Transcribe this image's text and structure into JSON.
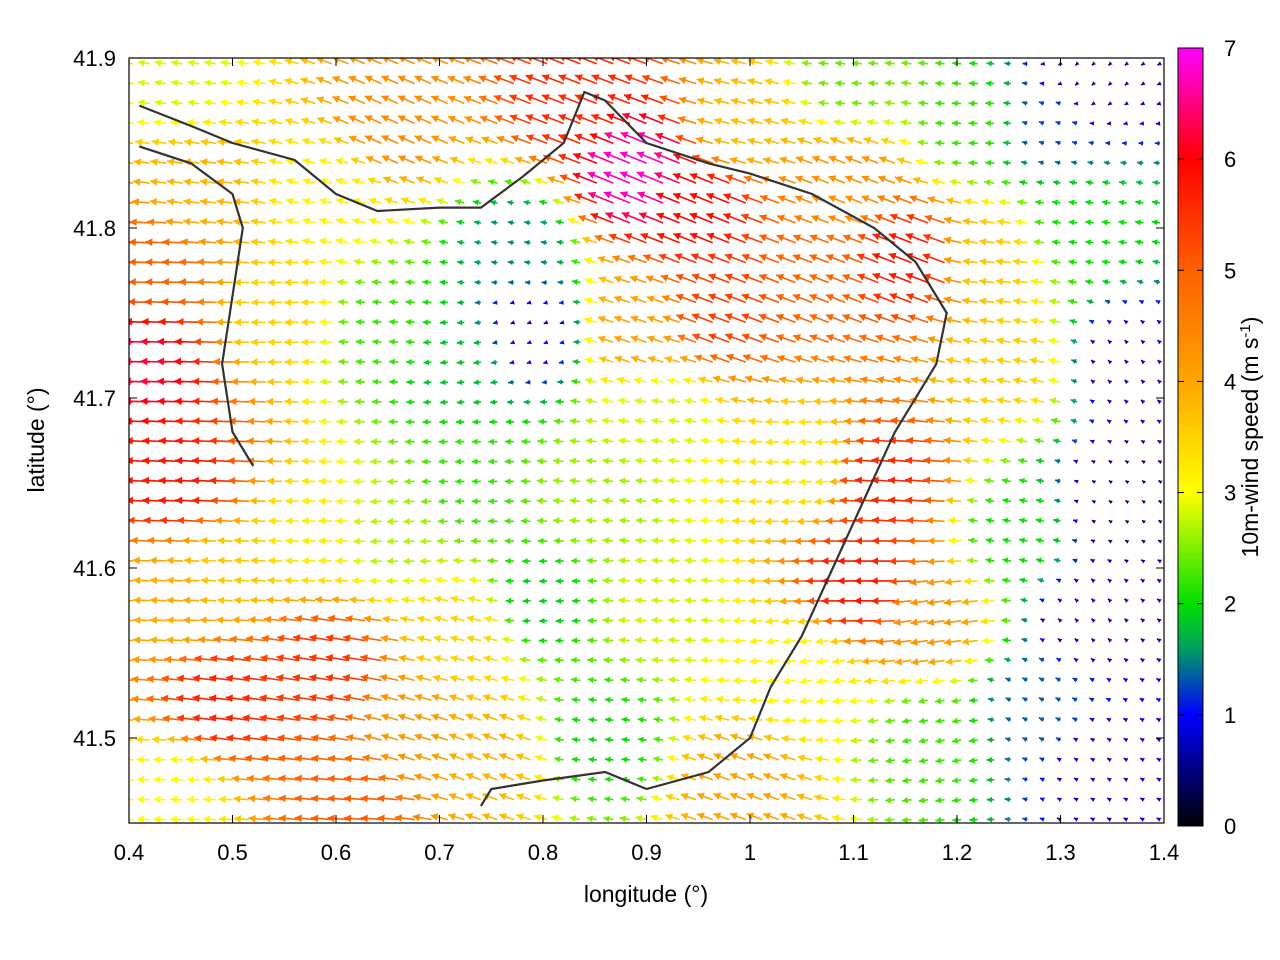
{
  "chart_data": {
    "type": "vector-field",
    "title": "",
    "xlabel": "longitude (°)",
    "ylabel": "latitude (°)",
    "xlim": [
      0.4,
      1.4
    ],
    "ylim": [
      41.45,
      41.9
    ],
    "xticks": [
      "0.4",
      "0.5",
      "0.6",
      "0.7",
      "0.8",
      "0.9",
      "1",
      "1.1",
      "1.2",
      "1.3",
      "1.4"
    ],
    "yticks": [
      "41.5",
      "41.6",
      "41.7",
      "41.8",
      "41.9"
    ],
    "xtick_values": [
      0.4,
      0.5,
      0.6,
      0.7,
      0.8,
      0.9,
      1.0,
      1.1,
      1.2,
      1.3,
      1.4
    ],
    "ytick_values": [
      41.5,
      41.6,
      41.7,
      41.8,
      41.9
    ],
    "colorbar": {
      "label_main": "10m-wind speed (m s",
      "label_sup": "-1",
      "label_close": ")",
      "range": [
        0,
        7
      ],
      "ticks": [
        "0",
        "1",
        "2",
        "3",
        "4",
        "5",
        "6",
        "7"
      ],
      "tick_values": [
        0,
        1,
        2,
        3,
        4,
        5,
        6,
        7
      ],
      "palette": [
        {
          "v": 0,
          "color": "#000000"
        },
        {
          "v": 1,
          "color": "#0000ff"
        },
        {
          "v": 1.6,
          "color": "#00a060"
        },
        {
          "v": 2,
          "color": "#00e000"
        },
        {
          "v": 3,
          "color": "#ffff00"
        },
        {
          "v": 4,
          "color": "#ffa500"
        },
        {
          "v": 5,
          "color": "#ff6000"
        },
        {
          "v": 6,
          "color": "#ff0000"
        },
        {
          "v": 7,
          "color": "#ff00ff"
        }
      ]
    },
    "grid_spacing_deg": {
      "lon": 0.016,
      "lat": 0.0117
    },
    "wind_regions": [
      {
        "lon": 0.43,
        "lat": 41.72,
        "u": -6.2,
        "v": 0.2
      },
      {
        "lon": 0.46,
        "lat": 41.65,
        "u": -5.8,
        "v": 0.3
      },
      {
        "lon": 0.43,
        "lat": 41.78,
        "u": -5.0,
        "v": 0.2
      },
      {
        "lon": 0.47,
        "lat": 41.82,
        "u": -3.8,
        "v": 0.5
      },
      {
        "lon": 0.45,
        "lat": 41.89,
        "u": -2.8,
        "v": 0.4
      },
      {
        "lon": 0.55,
        "lat": 41.75,
        "u": -3.5,
        "v": 0.0
      },
      {
        "lon": 0.65,
        "lat": 41.74,
        "u": -2.2,
        "v": 0.2
      },
      {
        "lon": 0.72,
        "lat": 41.72,
        "u": -1.8,
        "v": -0.2
      },
      {
        "lon": 0.79,
        "lat": 41.74,
        "u": -0.8,
        "v": -0.3
      },
      {
        "lon": 0.78,
        "lat": 41.79,
        "u": -1.5,
        "v": 0.2
      },
      {
        "lon": 0.66,
        "lat": 41.86,
        "u": -4.0,
        "v": 1.8
      },
      {
        "lon": 0.6,
        "lat": 41.82,
        "u": -3.0,
        "v": 0.8
      },
      {
        "lon": 0.84,
        "lat": 41.87,
        "u": -5.2,
        "v": 2.0
      },
      {
        "lon": 0.9,
        "lat": 41.83,
        "u": -6.3,
        "v": 2.6
      },
      {
        "lon": 0.96,
        "lat": 41.81,
        "u": -5.5,
        "v": 2.2
      },
      {
        "lon": 1.0,
        "lat": 41.86,
        "u": -3.6,
        "v": 0.9
      },
      {
        "lon": 1.1,
        "lat": 41.82,
        "u": -4.0,
        "v": 1.6
      },
      {
        "lon": 1.16,
        "lat": 41.78,
        "u": -5.4,
        "v": 2.1
      },
      {
        "lon": 1.08,
        "lat": 41.77,
        "u": -4.6,
        "v": 1.8
      },
      {
        "lon": 0.98,
        "lat": 41.75,
        "u": -5.0,
        "v": 1.9
      },
      {
        "lon": 0.9,
        "lat": 41.74,
        "u": -3.8,
        "v": 1.3
      },
      {
        "lon": 1.1,
        "lat": 41.89,
        "u": -2.4,
        "v": 0.2
      },
      {
        "lon": 1.22,
        "lat": 41.86,
        "u": -2.2,
        "v": 0.1
      },
      {
        "lon": 1.29,
        "lat": 41.86,
        "u": -1.2,
        "v": 0.4
      },
      {
        "lon": 1.33,
        "lat": 41.89,
        "u": -0.4,
        "v": -0.4
      },
      {
        "lon": 1.32,
        "lat": 41.8,
        "u": -2.0,
        "v": 0.3
      },
      {
        "lon": 1.36,
        "lat": 41.72,
        "u": -0.5,
        "v": 0.5
      },
      {
        "lon": 1.36,
        "lat": 41.64,
        "u": -0.3,
        "v": 0.2
      },
      {
        "lon": 1.33,
        "lat": 41.57,
        "u": -0.5,
        "v": 0.5
      },
      {
        "lon": 1.34,
        "lat": 41.48,
        "u": -0.7,
        "v": 0.4
      },
      {
        "lon": 1.28,
        "lat": 41.52,
        "u": -1.2,
        "v": 0.6
      },
      {
        "lon": 1.26,
        "lat": 41.62,
        "u": -2.0,
        "v": 0.4
      },
      {
        "lon": 1.26,
        "lat": 41.72,
        "u": -3.5,
        "v": 0.6
      },
      {
        "lon": 1.24,
        "lat": 41.78,
        "u": -3.6,
        "v": 0.4
      },
      {
        "lon": 1.14,
        "lat": 41.65,
        "u": -5.6,
        "v": 0.4
      },
      {
        "lon": 1.12,
        "lat": 41.59,
        "u": -5.8,
        "v": 0.0
      },
      {
        "lon": 1.18,
        "lat": 41.57,
        "u": -4.2,
        "v": -0.6
      },
      {
        "lon": 1.06,
        "lat": 41.66,
        "u": -3.2,
        "v": -0.2
      },
      {
        "lon": 1.06,
        "lat": 41.54,
        "u": -3.0,
        "v": -0.4
      },
      {
        "lon": 1.18,
        "lat": 41.5,
        "u": -2.2,
        "v": -0.4
      },
      {
        "lon": 1.0,
        "lat": 41.47,
        "u": -3.8,
        "v": 1.4
      },
      {
        "lon": 0.86,
        "lat": 41.5,
        "u": -2.0,
        "v": 0.2
      },
      {
        "lon": 0.92,
        "lat": 41.58,
        "u": -2.8,
        "v": 0.2
      },
      {
        "lon": 0.86,
        "lat": 41.64,
        "u": -2.6,
        "v": 0.3
      },
      {
        "lon": 0.92,
        "lat": 41.69,
        "u": -2.8,
        "v": 0.4
      },
      {
        "lon": 0.8,
        "lat": 41.58,
        "u": -1.9,
        "v": -0.1
      },
      {
        "lon": 0.73,
        "lat": 41.65,
        "u": -2.2,
        "v": 0.0
      },
      {
        "lon": 0.66,
        "lat": 41.62,
        "u": -2.7,
        "v": -0.1
      },
      {
        "lon": 0.58,
        "lat": 41.62,
        "u": -3.2,
        "v": 0.1
      },
      {
        "lon": 0.5,
        "lat": 41.6,
        "u": -3.6,
        "v": 0.2
      },
      {
        "lon": 0.45,
        "lat": 41.58,
        "u": -3.9,
        "v": 0.2
      },
      {
        "lon": 0.6,
        "lat": 41.54,
        "u": -5.4,
        "v": 0.9
      },
      {
        "lon": 0.5,
        "lat": 41.52,
        "u": -5.6,
        "v": 0.7
      },
      {
        "lon": 0.68,
        "lat": 41.5,
        "u": -4.0,
        "v": 1.2
      },
      {
        "lon": 0.75,
        "lat": 41.49,
        "u": -3.6,
        "v": 1.4
      },
      {
        "lon": 0.63,
        "lat": 41.465,
        "u": -5.0,
        "v": 0.4
      },
      {
        "lon": 0.45,
        "lat": 41.47,
        "u": -3.0,
        "v": 0.1
      },
      {
        "lon": 0.73,
        "lat": 41.56,
        "u": -3.4,
        "v": 0.8
      }
    ],
    "coastlines": [
      [
        [
          0.41,
          41.872
        ],
        [
          0.46,
          41.86
        ],
        [
          0.5,
          41.85
        ],
        [
          0.56,
          41.84
        ],
        [
          0.6,
          41.82
        ],
        [
          0.64,
          41.81
        ],
        [
          0.7,
          41.812
        ],
        [
          0.74,
          41.812
        ],
        [
          0.78,
          41.83
        ],
        [
          0.82,
          41.85
        ],
        [
          0.84,
          41.88
        ],
        [
          0.86,
          41.875
        ],
        [
          0.9,
          41.85
        ],
        [
          0.96,
          41.838
        ],
        [
          1.0,
          41.832
        ],
        [
          1.06,
          41.82
        ],
        [
          1.12,
          41.8
        ],
        [
          1.16,
          41.78
        ],
        [
          1.19,
          41.75
        ],
        [
          1.18,
          41.72
        ],
        [
          1.14,
          41.68
        ],
        [
          1.11,
          41.64
        ],
        [
          1.08,
          41.6
        ],
        [
          1.05,
          41.56
        ],
        [
          1.02,
          41.53
        ],
        [
          1.0,
          41.5
        ],
        [
          0.96,
          41.48
        ],
        [
          0.9,
          41.47
        ],
        [
          0.86,
          41.48
        ],
        [
          0.8,
          41.475
        ],
        [
          0.75,
          41.47
        ],
        [
          0.74,
          41.46
        ]
      ],
      [
        [
          0.41,
          41.848
        ],
        [
          0.46,
          41.838
        ],
        [
          0.5,
          41.82
        ],
        [
          0.51,
          41.8
        ],
        [
          0.5,
          41.76
        ],
        [
          0.49,
          41.72
        ],
        [
          0.5,
          41.68
        ],
        [
          0.52,
          41.66
        ]
      ]
    ]
  }
}
